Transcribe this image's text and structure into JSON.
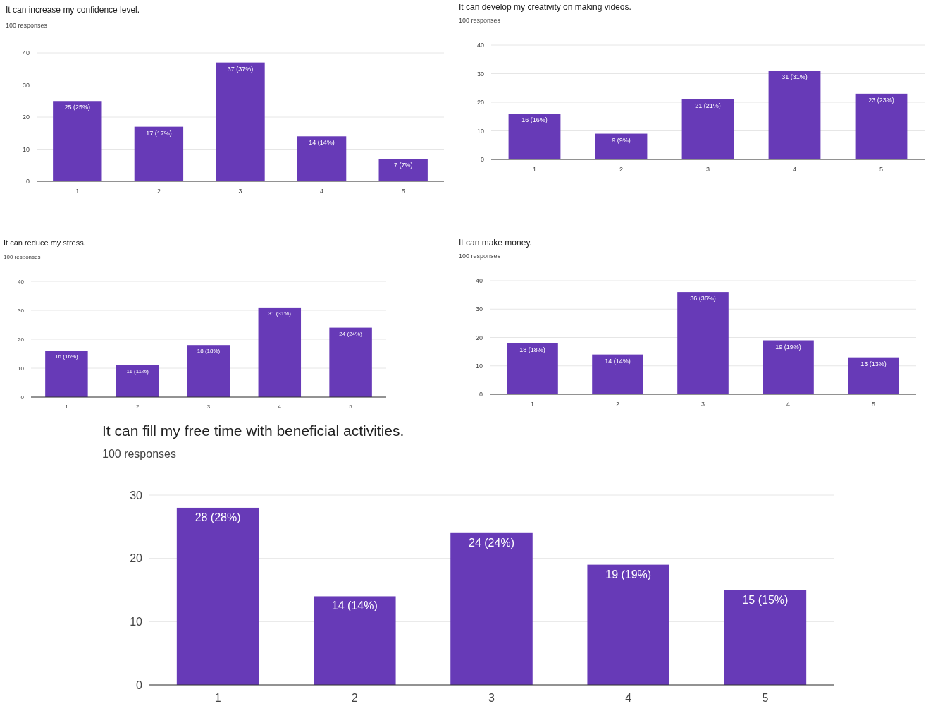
{
  "chart_data": [
    {
      "type": "bar",
      "title": "It can increase my confidence level.",
      "subtitle": "100 responses",
      "categories": [
        "1",
        "2",
        "3",
        "4",
        "5"
      ],
      "values": [
        25,
        17,
        37,
        14,
        7
      ],
      "value_labels": [
        "25 (25%)",
        "17 (17%)",
        "37 (37%)",
        "14 (14%)",
        "7 (7%)"
      ],
      "color": "#673ab7",
      "ylim": [
        0,
        40
      ],
      "yticks": [
        0,
        10,
        20,
        30,
        40
      ],
      "grid": "y"
    },
    {
      "type": "bar",
      "title": "It can develop my creativity on making videos.",
      "subtitle": "100 responses",
      "categories": [
        "1",
        "2",
        "3",
        "4",
        "5"
      ],
      "values": [
        16,
        9,
        21,
        31,
        23
      ],
      "value_labels": [
        "16 (16%)",
        "9 (9%)",
        "21 (21%)",
        "31 (31%)",
        "23 (23%)"
      ],
      "color": "#673ab7",
      "ylim": [
        0,
        40
      ],
      "yticks": [
        0,
        10,
        20,
        30,
        40
      ],
      "grid": "y"
    },
    {
      "type": "bar",
      "title": "It can reduce my stress.",
      "subtitle": "100 responses",
      "categories": [
        "1",
        "2",
        "3",
        "4",
        "5"
      ],
      "values": [
        16,
        11,
        18,
        31,
        24
      ],
      "value_labels": [
        "16 (16%)",
        "11 (11%)",
        "18 (18%)",
        "31 (31%)",
        "24 (24%)"
      ],
      "color": "#673ab7",
      "ylim": [
        0,
        40
      ],
      "yticks": [
        0,
        10,
        20,
        30,
        40
      ],
      "grid": "y"
    },
    {
      "type": "bar",
      "title": "It can make money.",
      "subtitle": "100 responses",
      "categories": [
        "1",
        "2",
        "3",
        "4",
        "5"
      ],
      "values": [
        18,
        14,
        36,
        19,
        13
      ],
      "value_labels": [
        "18 (18%)",
        "14 (14%)",
        "36 (36%)",
        "19 (19%)",
        "13 (13%)"
      ],
      "color": "#673ab7",
      "ylim": [
        0,
        40
      ],
      "yticks": [
        0,
        10,
        20,
        30,
        40
      ],
      "grid": "y"
    },
    {
      "type": "bar",
      "title": "It can fill my free time with beneficial activities.",
      "subtitle": "100 responses",
      "categories": [
        "1",
        "2",
        "3",
        "4",
        "5"
      ],
      "values": [
        28,
        14,
        24,
        19,
        15
      ],
      "value_labels": [
        "28 (28%)",
        "14 (14%)",
        "24 (24%)",
        "19 (19%)",
        "15 (15%)"
      ],
      "color": "#673ab7",
      "ylim": [
        0,
        30
      ],
      "yticks": [
        0,
        10,
        20,
        30
      ],
      "grid": "y"
    }
  ]
}
